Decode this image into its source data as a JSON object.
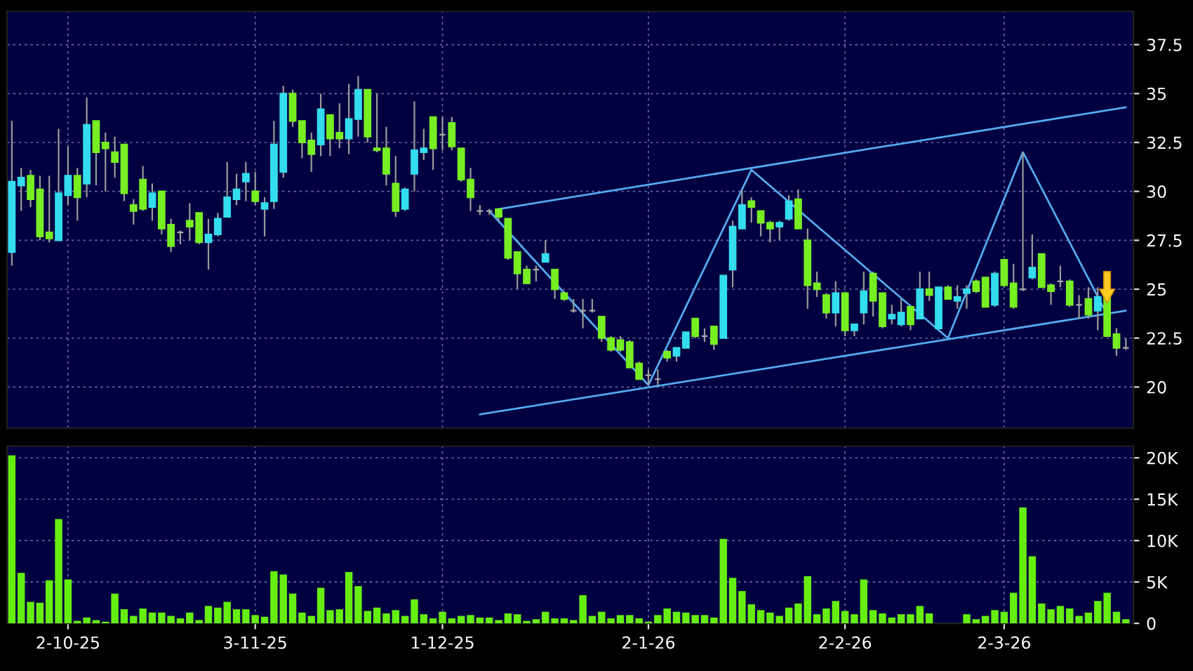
{
  "chart_data": [
    {
      "type": "candlestick",
      "categories": [
        null,
        null,
        null,
        null,
        null,
        null,
        null,
        null,
        null,
        null,
        null,
        null,
        null,
        null,
        null,
        null,
        null,
        null,
        null,
        null,
        null,
        null,
        null,
        null,
        null,
        null,
        null,
        null,
        null,
        null,
        null,
        null,
        null,
        null,
        null,
        null,
        null,
        null,
        null,
        null,
        null,
        null,
        null,
        null,
        null,
        null,
        null,
        null,
        null,
        null,
        null,
        null,
        null,
        null,
        null,
        null,
        null,
        null,
        null,
        null,
        null,
        null,
        null,
        null,
        null,
        null,
        null,
        null,
        null,
        null,
        null,
        null,
        null,
        null,
        null,
        null,
        null,
        null,
        null,
        null,
        null,
        null,
        null,
        null,
        null,
        null,
        null,
        null,
        null,
        null,
        null,
        null,
        null,
        null,
        null,
        null,
        null,
        null,
        null,
        null,
        null,
        null,
        null,
        null,
        null,
        null,
        null,
        null,
        null,
        null,
        null,
        null,
        null,
        null,
        null,
        null,
        null,
        null,
        null,
        null
      ],
      "ohlc": [
        [
          26.9,
          33.6,
          26.2,
          30.5
        ],
        [
          30.3,
          31.2,
          29.0,
          30.7
        ],
        [
          30.8,
          31.1,
          29.2,
          29.6
        ],
        [
          30.1,
          30.8,
          27.5,
          27.7
        ],
        [
          27.9,
          30.8,
          27.4,
          27.6
        ],
        [
          27.5,
          33.2,
          27.5,
          29.9
        ],
        [
          29.8,
          32.3,
          29.3,
          30.8
        ],
        [
          30.8,
          31.2,
          28.5,
          29.7
        ],
        [
          30.4,
          34.8,
          29.7,
          33.4
        ],
        [
          33.6,
          33.6,
          30.3,
          32.0
        ],
        [
          32.5,
          33.0,
          30.0,
          32.2
        ],
        [
          32.0,
          32.8,
          30.7,
          31.5
        ],
        [
          32.4,
          32.4,
          29.5,
          29.9
        ],
        [
          29.3,
          29.6,
          28.3,
          29.0
        ],
        [
          30.6,
          31.3,
          29.0,
          29.1
        ],
        [
          29.2,
          30.4,
          28.5,
          29.9
        ],
        [
          30.0,
          30.0,
          27.8,
          28.1
        ],
        [
          28.3,
          28.6,
          26.9,
          27.2
        ],
        [
          27.9,
          28.0,
          27.3,
          27.9
        ],
        [
          28.5,
          29.4,
          27.5,
          28.2
        ],
        [
          28.9,
          28.9,
          27.3,
          27.4
        ],
        [
          27.4,
          28.6,
          26.0,
          27.8
        ],
        [
          27.8,
          28.9,
          27.7,
          28.6
        ],
        [
          28.7,
          31.5,
          28.7,
          29.7
        ],
        [
          29.6,
          30.9,
          29.3,
          30.1
        ],
        [
          30.5,
          31.5,
          29.5,
          30.9
        ],
        [
          30.0,
          31.0,
          29.3,
          29.5
        ],
        [
          29.1,
          29.7,
          27.7,
          29.4
        ],
        [
          29.5,
          33.6,
          29.1,
          32.4
        ],
        [
          31.0,
          35.4,
          30.7,
          35.0
        ],
        [
          35.0,
          35.2,
          33.3,
          33.6
        ],
        [
          33.6,
          33.6,
          31.7,
          32.5
        ],
        [
          32.6,
          33.0,
          31.0,
          31.9
        ],
        [
          32.4,
          35.0,
          31.8,
          34.2
        ],
        [
          33.9,
          33.9,
          31.8,
          32.7
        ],
        [
          33.0,
          34.5,
          32.2,
          32.7
        ],
        [
          32.7,
          35.5,
          31.9,
          33.7
        ],
        [
          33.7,
          35.9,
          32.8,
          35.2
        ],
        [
          35.2,
          35.2,
          32.5,
          32.8
        ],
        [
          32.2,
          35.0,
          32.0,
          32.1
        ],
        [
          32.2,
          33.3,
          30.3,
          30.9
        ],
        [
          30.4,
          31.8,
          28.7,
          29.0
        ],
        [
          29.1,
          30.2,
          29.0,
          30.1
        ],
        [
          30.9,
          34.6,
          30.0,
          32.1
        ],
        [
          32.0,
          33.2,
          31.6,
          32.2
        ],
        [
          33.8,
          33.8,
          31.1,
          32.2
        ],
        [
          32.9,
          33.8,
          32.1,
          32.9
        ],
        [
          33.5,
          33.8,
          32.1,
          32.3
        ],
        [
          32.2,
          32.2,
          30.5,
          30.6
        ],
        [
          30.6,
          31.2,
          29.0,
          29.7
        ],
        [
          29.0,
          29.3,
          28.8,
          29.0
        ],
        [
          29.0,
          29.1,
          28.8,
          29.0
        ],
        [
          29.1,
          29.1,
          28.5,
          28.7
        ],
        [
          28.6,
          28.6,
          26.5,
          26.6
        ],
        [
          26.9,
          26.9,
          25.0,
          25.8
        ],
        [
          26.0,
          26.2,
          25.3,
          25.3
        ],
        [
          26.0,
          26.2,
          25.4,
          26.0
        ],
        [
          26.4,
          27.5,
          26.4,
          26.8
        ],
        [
          26.0,
          26.0,
          24.5,
          25.0
        ],
        [
          24.8,
          24.9,
          24.4,
          24.5
        ],
        [
          23.9,
          24.5,
          23.8,
          23.9
        ],
        [
          23.9,
          24.5,
          23.0,
          23.9
        ],
        [
          23.9,
          24.5,
          23.8,
          23.9
        ],
        [
          23.6,
          23.6,
          22.3,
          22.5
        ],
        [
          22.5,
          22.6,
          21.8,
          21.9
        ],
        [
          22.4,
          22.6,
          21.8,
          21.9
        ],
        [
          22.3,
          22.4,
          21.0,
          21.0
        ],
        [
          21.2,
          21.3,
          20.4,
          20.4
        ],
        [
          20.6,
          20.9,
          20.1,
          20.6
        ],
        [
          20.4,
          20.9,
          20.1,
          20.4
        ],
        [
          21.8,
          21.9,
          21.3,
          21.5
        ],
        [
          21.6,
          22.0,
          21.3,
          22.0
        ],
        [
          22.0,
          22.8,
          22.0,
          22.8
        ],
        [
          23.5,
          23.5,
          22.5,
          22.6
        ],
        [
          22.6,
          23.0,
          22.3,
          22.6
        ],
        [
          23.1,
          23.1,
          21.9,
          22.2
        ],
        [
          22.5,
          25.7,
          22.5,
          25.7
        ],
        [
          26.0,
          28.5,
          25.1,
          28.2
        ],
        [
          28.1,
          30.1,
          28.1,
          29.3
        ],
        [
          29.5,
          29.7,
          28.4,
          29.2
        ],
        [
          29.0,
          29.0,
          27.7,
          28.4
        ],
        [
          28.4,
          28.5,
          27.4,
          28.1
        ],
        [
          28.2,
          28.5,
          27.5,
          28.4
        ],
        [
          28.6,
          29.8,
          28.5,
          29.5
        ],
        [
          29.6,
          30.1,
          28.1,
          28.1
        ],
        [
          27.5,
          28.1,
          24.0,
          25.2
        ],
        [
          25.3,
          25.9,
          24.6,
          25.0
        ],
        [
          24.7,
          24.8,
          23.5,
          23.8
        ],
        [
          23.8,
          25.4,
          23.1,
          24.8
        ],
        [
          24.8,
          24.8,
          22.6,
          22.9
        ],
        [
          22.9,
          23.2,
          22.6,
          23.2
        ],
        [
          23.8,
          25.9,
          23.2,
          24.9
        ],
        [
          25.8,
          25.9,
          23.6,
          24.4
        ],
        [
          24.8,
          24.8,
          23.0,
          23.1
        ],
        [
          23.5,
          24.2,
          23.2,
          23.7
        ],
        [
          23.2,
          24.5,
          23.1,
          23.8
        ],
        [
          24.1,
          24.1,
          22.9,
          23.2
        ],
        [
          23.5,
          25.9,
          23.5,
          25.0
        ],
        [
          25.0,
          25.9,
          24.4,
          24.7
        ],
        [
          23.0,
          25.1,
          23.0,
          25.1
        ],
        [
          25.1,
          25.2,
          24.5,
          24.5
        ],
        [
          24.4,
          25.2,
          24.0,
          24.6
        ],
        [
          24.8,
          25.2,
          24.0,
          25.0
        ],
        [
          25.4,
          25.5,
          24.8,
          24.9
        ],
        [
          25.6,
          25.6,
          24.1,
          24.1
        ],
        [
          24.2,
          25.9,
          24.1,
          25.8
        ],
        [
          26.5,
          26.5,
          25.1,
          25.2
        ],
        [
          25.3,
          26.3,
          24.0,
          24.1
        ],
        [
          25.0,
          32.0,
          24.9,
          25.0
        ],
        [
          25.6,
          27.8,
          25.5,
          26.1
        ],
        [
          26.8,
          26.8,
          25.1,
          25.1
        ],
        [
          25.2,
          25.3,
          24.2,
          24.9
        ],
        [
          25.4,
          26.2,
          25.1,
          25.4
        ],
        [
          25.4,
          25.5,
          24.1,
          24.2
        ],
        [
          24.2,
          24.7,
          23.5,
          24.2
        ],
        [
          24.5,
          25.1,
          23.5,
          23.7
        ],
        [
          23.9,
          25.1,
          22.9,
          24.6
        ],
        [
          25.8,
          25.8,
          22.6,
          22.6
        ],
        [
          22.7,
          23.0,
          21.6,
          22.0
        ],
        [
          22.0,
          22.5,
          21.9,
          22.0
        ]
      ],
      "colors": [
        "#33ddee",
        "#33ddee",
        "#77ee22",
        "#77ee22",
        "#77ee22",
        "#33ddee",
        "#33ddee",
        "#77ee22",
        "#33ddee",
        "#77ee22",
        "#77ee22",
        "#77ee22",
        "#77ee22",
        "#77ee22",
        "#77ee22",
        "#33ddee",
        "#77ee22",
        "#77ee22",
        "#aaaaaa",
        "#77ee22",
        "#77ee22",
        "#33ddee",
        "#33ddee",
        "#33ddee",
        "#33ddee",
        "#33ddee",
        "#77ee22",
        "#33ddee",
        "#33ddee",
        "#33ddee",
        "#77ee22",
        "#77ee22",
        "#77ee22",
        "#33ddee",
        "#77ee22",
        "#77ee22",
        "#33ddee",
        "#33ddee",
        "#77ee22",
        "#77ee22",
        "#77ee22",
        "#77ee22",
        "#33ddee",
        "#33ddee",
        "#33ddee",
        "#77ee22",
        "#aaaaaa",
        "#77ee22",
        "#77ee22",
        "#77ee22",
        "#aaaaaa",
        "#aaaaaa",
        "#77ee22",
        "#77ee22",
        "#77ee22",
        "#77ee22",
        "#aaaaaa",
        "#33ddee",
        "#77ee22",
        "#77ee22",
        "#aaaaaa",
        "#aaaaaa",
        "#aaaaaa",
        "#77ee22",
        "#77ee22",
        "#77ee22",
        "#77ee22",
        "#77ee22",
        "#aaaaaa",
        "#aaaaaa",
        "#77ee22",
        "#33ddee",
        "#33ddee",
        "#77ee22",
        "#aaaaaa",
        "#77ee22",
        "#33ddee",
        "#33ddee",
        "#33ddee",
        "#77ee22",
        "#77ee22",
        "#77ee22",
        "#33ddee",
        "#33ddee",
        "#77ee22",
        "#77ee22",
        "#77ee22",
        "#77ee22",
        "#33ddee",
        "#77ee22",
        "#33ddee",
        "#33ddee",
        "#77ee22",
        "#77ee22",
        "#33ddee",
        "#33ddee",
        "#77ee22",
        "#33ddee",
        "#77ee22",
        "#33ddee",
        "#77ee22",
        "#33ddee",
        "#33ddee",
        "#77ee22",
        "#77ee22",
        "#33ddee",
        "#77ee22",
        "#77ee22",
        "#aaaaaa",
        "#33ddee",
        "#77ee22",
        "#77ee22",
        "#aaaaaa",
        "#77ee22",
        "#aaaaaa",
        "#77ee22",
        "#33ddee",
        "#77ee22",
        "#77ee22",
        "#aaaaaa"
      ],
      "series": [
        {
          "type": "line",
          "color": "#55aaee",
          "values": [
            null,
            null,
            null,
            null,
            null,
            null,
            null,
            null,
            null,
            null,
            null,
            null,
            null,
            null,
            null,
            null,
            null,
            null,
            null,
            null,
            null,
            null,
            null,
            null,
            null,
            null,
            null,
            null,
            null,
            null,
            null,
            null,
            null,
            null,
            null,
            null,
            null,
            null,
            null,
            null,
            null,
            null,
            null,
            null,
            null,
            null,
            null,
            null,
            null,
            null,
            null,
            null,
            29.1,
            null,
            null,
            null,
            null,
            null,
            null,
            null,
            null,
            null,
            null,
            null,
            null,
            null,
            null,
            null,
            null,
            null,
            null,
            null,
            null,
            null,
            null,
            null,
            null,
            null,
            null,
            null,
            null,
            null,
            null,
            null,
            null,
            null,
            null,
            null,
            null,
            null,
            null,
            null,
            null,
            null,
            null,
            null,
            null,
            null,
            null,
            null,
            null,
            null,
            null,
            null,
            null,
            null,
            null,
            null,
            null,
            null,
            null,
            null,
            null,
            null,
            null,
            null,
            null,
            null,
            null,
            34.3
          ]
        },
        {
          "type": "line",
          "color": "#55aaee",
          "values": [
            null,
            null,
            null,
            null,
            null,
            null,
            null,
            null,
            null,
            null,
            null,
            null,
            null,
            null,
            null,
            null,
            null,
            null,
            null,
            null,
            null,
            null,
            null,
            null,
            null,
            null,
            null,
            null,
            null,
            null,
            null,
            null,
            null,
            null,
            null,
            null,
            null,
            null,
            null,
            null,
            null,
            null,
            null,
            null,
            null,
            null,
            null,
            null,
            null,
            null,
            18.6,
            null,
            null,
            null,
            null,
            null,
            null,
            null,
            null,
            null,
            null,
            null,
            null,
            null,
            null,
            null,
            null,
            null,
            null,
            null,
            null,
            null,
            null,
            null,
            null,
            null,
            null,
            null,
            null,
            null,
            null,
            null,
            null,
            null,
            null,
            null,
            null,
            null,
            null,
            null,
            null,
            null,
            null,
            null,
            null,
            null,
            null,
            null,
            null,
            null,
            null,
            null,
            null,
            null,
            null,
            null,
            null,
            null,
            null,
            null,
            null,
            null,
            null,
            null,
            null,
            null,
            null,
            null,
            null,
            23.9
          ]
        },
        {
          "type": "line",
          "color": "#55aaee",
          "values": [
            null,
            null,
            null,
            null,
            null,
            null,
            null,
            null,
            null,
            null,
            null,
            null,
            null,
            null,
            null,
            null,
            null,
            null,
            null,
            null,
            null,
            null,
            null,
            null,
            null,
            null,
            null,
            null,
            null,
            null,
            null,
            null,
            null,
            null,
            null,
            null,
            null,
            null,
            null,
            null,
            null,
            null,
            null,
            null,
            null,
            null,
            null,
            null,
            null,
            null,
            null,
            29.0,
            null,
            null,
            null,
            null,
            null,
            null,
            null,
            null,
            null,
            null,
            null,
            null,
            null,
            null,
            null,
            null,
            20.1,
            null,
            null,
            null,
            null,
            null,
            null,
            null,
            null,
            null,
            null,
            31.1,
            null,
            null,
            null,
            null,
            null,
            null,
            null,
            null,
            null,
            null,
            null,
            null,
            null,
            null,
            null,
            null,
            null,
            null,
            null,
            null,
            22.5,
            null,
            null,
            null,
            null,
            null,
            null,
            null,
            32.0,
            null,
            null,
            null,
            null,
            null,
            null,
            null,
            null,
            23.7,
            null,
            null
          ]
        }
      ],
      "ylim": [
        17.9,
        39.2
      ],
      "yticks": [
        20,
        22.5,
        25,
        27.5,
        30,
        32.5,
        35,
        37.5
      ],
      "grid": true,
      "tick_labels": "y"
    },
    {
      "type": "bar",
      "categories": [
        null,
        null,
        null,
        null,
        null,
        null,
        "2-10-25",
        null,
        null,
        null,
        null,
        null,
        null,
        null,
        null,
        null,
        null,
        null,
        null,
        null,
        null,
        null,
        null,
        null,
        null,
        null,
        "3-11-25",
        null,
        null,
        null,
        null,
        null,
        null,
        null,
        null,
        null,
        null,
        null,
        null,
        null,
        null,
        null,
        null,
        null,
        null,
        null,
        "1-12-25",
        null,
        null,
        null,
        null,
        null,
        null,
        null,
        null,
        null,
        null,
        null,
        null,
        null,
        null,
        null,
        null,
        null,
        null,
        null,
        null,
        null,
        "2-1-26",
        null,
        null,
        null,
        null,
        null,
        null,
        null,
        null,
        null,
        null,
        null,
        null,
        null,
        null,
        null,
        null,
        null,
        null,
        null,
        null,
        "2-2-26",
        null,
        null,
        null,
        null,
        null,
        null,
        null,
        null,
        null,
        null,
        null,
        null,
        null,
        null,
        null,
        null,
        "2-3-26",
        null,
        null,
        null,
        null,
        null,
        null,
        null,
        null,
        null,
        null,
        null,
        null,
        null
      ],
      "values": [
        20300,
        6100,
        2600,
        2500,
        5200,
        12600,
        5300,
        300,
        700,
        400,
        200,
        3600,
        1700,
        900,
        1800,
        1300,
        1300,
        900,
        600,
        1300,
        400,
        2100,
        1900,
        2600,
        1700,
        1700,
        1000,
        800,
        6300,
        5900,
        3600,
        1300,
        900,
        4300,
        1600,
        1700,
        6200,
        4500,
        1500,
        1900,
        1200,
        1600,
        900,
        2900,
        1100,
        600,
        1400,
        600,
        900,
        1000,
        700,
        700,
        400,
        1200,
        1100,
        300,
        500,
        1400,
        600,
        600,
        400,
        3400,
        900,
        1400,
        600,
        1000,
        1000,
        600,
        200,
        1000,
        1800,
        1400,
        1300,
        1000,
        1000,
        700,
        10200,
        5500,
        3900,
        2300,
        1600,
        1300,
        900,
        1900,
        2400,
        5700,
        1100,
        1800,
        2700,
        1500,
        1100,
        5300,
        1600,
        1200,
        700,
        1100,
        1100,
        2100,
        1200,
        0,
        0,
        0,
        1100,
        500,
        900,
        1600,
        1400,
        3700,
        14000,
        8100,
        2400,
        1700,
        2100,
        1800,
        900,
        1300,
        2700,
        3700,
        1400,
        500
      ],
      "color": "#66ee11",
      "ylim": [
        0,
        21400
      ],
      "yticks": [
        0,
        {
          "value": 5000,
          "label": "5K"
        },
        {
          "value": 10000,
          "label": "10K"
        },
        {
          "value": 15000,
          "label": "15K"
        },
        {
          "value": 20000,
          "label": "20K"
        }
      ],
      "grid": true
    }
  ]
}
